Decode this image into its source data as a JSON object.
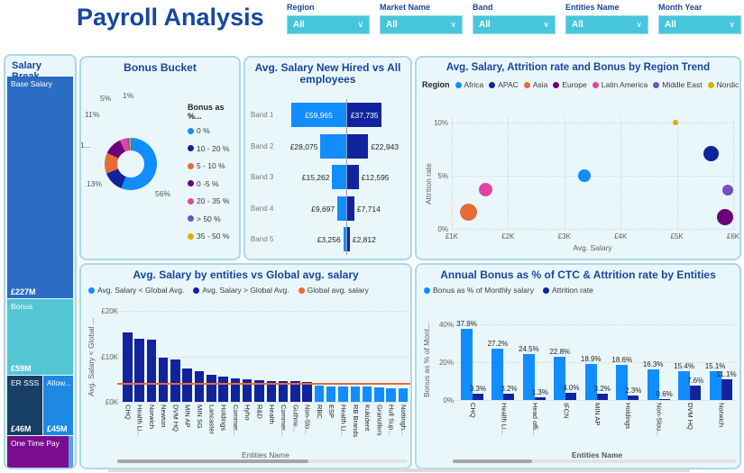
{
  "header": {
    "title": "Payroll Analysis",
    "filters": [
      {
        "label": "Region",
        "value": "All"
      },
      {
        "label": "Market Name",
        "value": "All"
      },
      {
        "label": "Band",
        "value": "All"
      },
      {
        "label": "Entities Name",
        "value": "All"
      },
      {
        "label": "Month Year",
        "value": "All"
      }
    ]
  },
  "colors": {
    "accent": "#17479E",
    "slicer": "#47C6DB",
    "card_bg": "#EAF7FA",
    "card_border": "#ABD8EA",
    "axis_text": "#605E5C",
    "palette": [
      "#118DFF",
      "#12239E",
      "#E66C37",
      "#6B007B",
      "#E044A7",
      "#744EC2",
      "#D9B300"
    ]
  },
  "salary_breakdown": {
    "title": "Salary Break...",
    "tiles": [
      {
        "label": "Base Salary",
        "value": "£227M",
        "color": "#2B6CC4"
      },
      {
        "label": "Bonus",
        "value": "£59M",
        "color": "#53C6D6"
      },
      {
        "label": "ER SSS",
        "value": "£46M",
        "color": "#173F66"
      },
      {
        "label": "Allow...",
        "value": "£45M",
        "color": "#1E88E5"
      },
      {
        "label": "One Time Pay",
        "value": "",
        "color": "#7A0D8E"
      }
    ]
  },
  "chart_data": [
    {
      "id": "bonus_bucket",
      "type": "pie",
      "title": "Bonus Bucket",
      "legend_title": "Bonus as %...",
      "slices": [
        {
          "label": "0 %",
          "value": 56,
          "display": "56%",
          "color": "#118DFF"
        },
        {
          "label": "10 - 20 %",
          "value": 13,
          "display": "13%",
          "color": "#12239E"
        },
        {
          "label": "5 - 10 %",
          "value": 13,
          "display": "1...",
          "color": "#E66C37"
        },
        {
          "label": "0 -5 %",
          "value": 11,
          "display": "11%",
          "color": "#6B007B"
        },
        {
          "label": "20 - 35 %",
          "value": 5,
          "display": "5%",
          "color": "#E044A7"
        },
        {
          "label": "> 50 %",
          "value": 1,
          "display": "1%",
          "color": "#744EC2"
        },
        {
          "label": "35 - 50 %",
          "value": 1,
          "display": "",
          "color": "#D9B300"
        }
      ]
    },
    {
      "id": "new_hired_vs_all",
      "type": "bar",
      "title": "Avg. Salary New Hired vs All employees",
      "categories": [
        "Band 1",
        "Band 2",
        "Band 3",
        "Band 4",
        "Band 5"
      ],
      "series": [
        {
          "name": "New Hired",
          "color": "#118DFF",
          "values": [
            59965,
            28075,
            15262,
            9697,
            3256
          ],
          "labels": [
            "£59,965",
            "£28,075",
            "£15,262",
            "£9,697",
            "£3,256"
          ]
        },
        {
          "name": "All employees",
          "color": "#12239E",
          "values": [
            37735,
            22943,
            12595,
            7714,
            2812
          ],
          "labels": [
            "£37,735",
            "£22,943",
            "£12,595",
            "£7,714",
            "£2,812"
          ]
        }
      ]
    },
    {
      "id": "region_trend",
      "type": "scatter",
      "title": "Avg. Salary, Attrition rate and Bonus by Region Trend",
      "legend_title": "Region",
      "xlabel": "Avg. Salary",
      "ylabel": "Attrition rate",
      "x_ticks": [
        "£1K",
        "£2K",
        "£3K",
        "£4K",
        "£5K",
        "£6K"
      ],
      "y_ticks": [
        "0%",
        "5%",
        "10%"
      ],
      "x_range": [
        1000,
        6000
      ],
      "y_range": [
        0,
        10.5
      ],
      "points": [
        {
          "region": "Africa",
          "color": "#118DFF",
          "x": 3350,
          "y": 5.0,
          "size": 14
        },
        {
          "region": "APAC",
          "color": "#12239E",
          "x": 5600,
          "y": 7.1,
          "size": 17
        },
        {
          "region": "Asia",
          "color": "#E66C37",
          "x": 1300,
          "y": 1.6,
          "size": 19
        },
        {
          "region": "Europe",
          "color": "#6B007B",
          "x": 5850,
          "y": 1.1,
          "size": 18
        },
        {
          "region": "Latin America",
          "color": "#E044A7",
          "x": 1600,
          "y": 3.7,
          "size": 15
        },
        {
          "region": "Middle East",
          "color": "#744EC2",
          "x": 5900,
          "y": 3.6,
          "size": 12
        },
        {
          "region": "Nordic",
          "color": "#D9B300",
          "x": 4970,
          "y": 10.0,
          "size": 6
        }
      ]
    },
    {
      "id": "entity_salary",
      "type": "bar",
      "title": "Avg. Salary by entities vs Global avg. salary",
      "legend": [
        {
          "label": "Avg. Salary < Global Avg.",
          "color": "#118DFF"
        },
        {
          "label": "Avg. Salary > Global Avg.",
          "color": "#12239E"
        },
        {
          "label": "Global avg. salary",
          "color": "#E66C37"
        }
      ],
      "xlabel": "Entities Name",
      "ylabel": "Avg. Salary < Global ...",
      "y_ticks": [
        "£0K",
        "£10K",
        "£20K"
      ],
      "ylim": [
        0,
        20
      ],
      "global_avg": 3.9,
      "categories": [
        "CHQ",
        "Health Li...",
        "Norwich",
        "Newton",
        "DVM HQ",
        "MIN AP",
        "MIN SG",
        "Lancaster",
        "Holdings",
        "Commer...",
        "Hyho",
        "R&D",
        "Health",
        "Commer...",
        "Guthrie...",
        "Non-Slo...",
        "RBC",
        "ESP",
        "Health Li...",
        "RB Brands",
        "Kukident",
        "Granollers",
        "Hull Sup...",
        "Nottingh..."
      ],
      "values": [
        15.2,
        13.9,
        13.7,
        9.7,
        9.4,
        7.4,
        6.8,
        5.9,
        5.5,
        5.2,
        5.0,
        4.7,
        4.6,
        4.6,
        4.5,
        4.4,
        3.5,
        3.4,
        3.4,
        3.4,
        3.3,
        3.2,
        3.0,
        3.0
      ]
    },
    {
      "id": "bonus_attrition",
      "type": "bar",
      "title": "Annual Bonus as % of CTC & Attrition rate  by Entities",
      "legend": [
        {
          "label": "Bonus as % of Monthly salary",
          "color": "#118DFF"
        },
        {
          "label": "Attrition rate",
          "color": "#12239E"
        }
      ],
      "xlabel": "Entities Name",
      "ylabel": "Bonus as % of Mont...",
      "y_ticks": [
        "0%",
        "20%",
        "40%"
      ],
      "ylim": [
        0,
        44
      ],
      "categories": [
        "CHQ",
        "Health Li...",
        "Head offi...",
        "IFCN",
        "MIN AP",
        "Holdings",
        "Non-Slou...",
        "DVM HQ",
        "Norwich"
      ],
      "series": [
        {
          "name": "Bonus as % of Monthly salary",
          "color": "#118DFF",
          "values": [
            37.9,
            27.2,
            24.5,
            22.8,
            18.9,
            18.6,
            16.3,
            15.4,
            15.1
          ],
          "labels": [
            "37.9%",
            "27.2%",
            "24.5%",
            "22.8%",
            "18.9%",
            "18.6%",
            "16.3%",
            "15.4%",
            "15.1%"
          ]
        },
        {
          "name": "Attrition rate",
          "color": "#12239E",
          "values": [
            3.3,
            3.2,
            1.3,
            4.0,
            3.2,
            2.3,
            0.6,
            7.6,
            11.1
          ],
          "labels": [
            "3.3%",
            "3.2%",
            "1.3%",
            "4.0%",
            "3.2%",
            "2.3%",
            "0.6%",
            "7.6%",
            "11.1%"
          ]
        }
      ]
    }
  ]
}
